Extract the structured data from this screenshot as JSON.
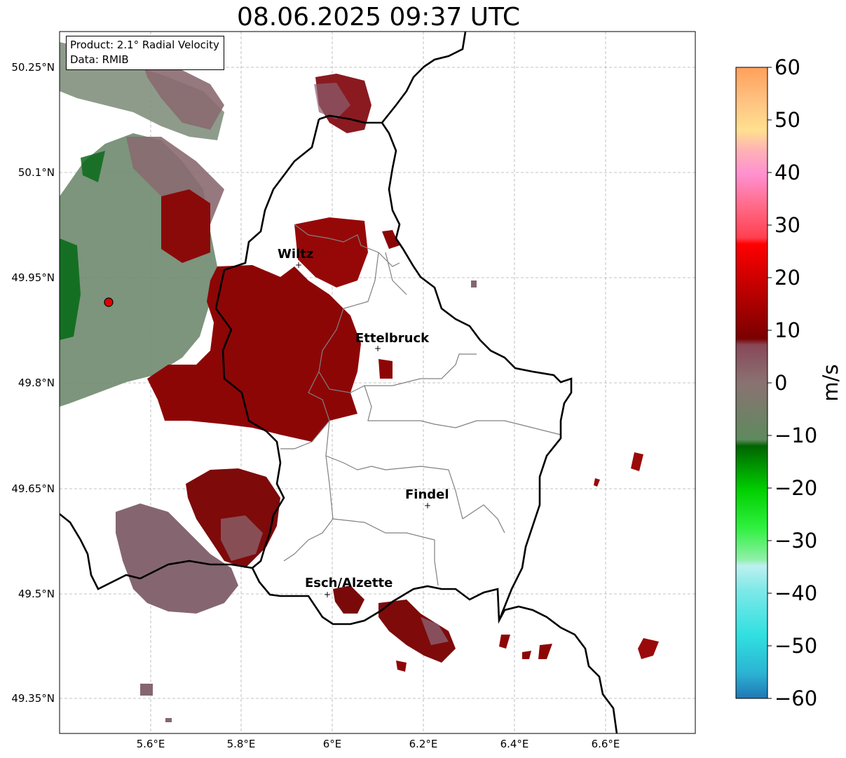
{
  "title": "08.06.2025 09:37 UTC",
  "info": {
    "product": "Product: 2.1° Radial Velocity",
    "source": "Data: RMIB"
  },
  "axes": {
    "lat_ticks": [
      "50.25°N",
      "50.1°N",
      "49.95°N",
      "49.8°N",
      "49.65°N",
      "49.5°N",
      "49.35°N"
    ],
    "lon_ticks": [
      "5.6°E",
      "5.8°E",
      "6°E",
      "6.2°E",
      "6.4°E",
      "6.6°E"
    ]
  },
  "cities": [
    {
      "name": "Wiltz"
    },
    {
      "name": "Ettelbruck"
    },
    {
      "name": "Findel"
    },
    {
      "name": "Esch/Alzette"
    }
  ],
  "colorbar": {
    "unit": "m/s",
    "ticks": [
      "60",
      "50",
      "40",
      "30",
      "20",
      "10",
      "0",
      "−10",
      "−20",
      "−30",
      "−40",
      "−50",
      "−60"
    ],
    "range": [
      -60,
      60
    ]
  },
  "colors": {
    "border": "#000000",
    "canton_lines": "#808080",
    "radar_marker": "#e00000"
  }
}
